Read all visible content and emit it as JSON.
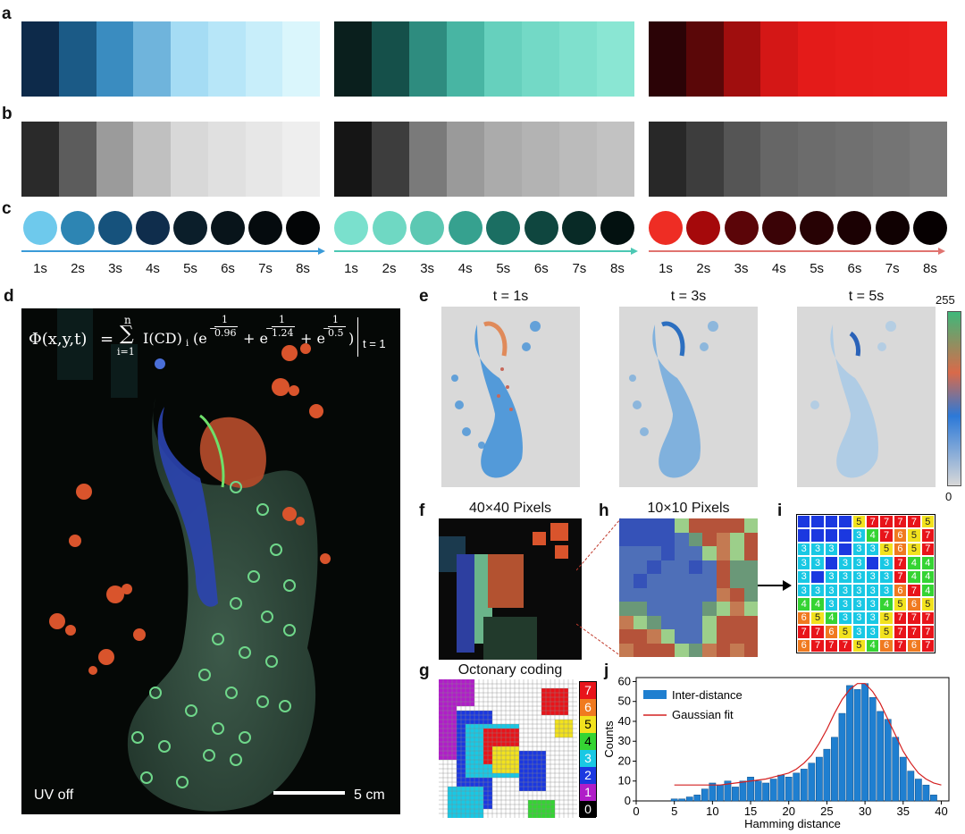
{
  "panels": {
    "a": "a",
    "b": "b",
    "c": "c",
    "d": "d",
    "e": "e",
    "f": "f",
    "g": "g",
    "h": "h",
    "i": "i",
    "j": "j"
  },
  "colors": {
    "blue_strip": [
      "#0d2a4a",
      "#1b5a86",
      "#3a8cc0",
      "#6fb4dc",
      "#a5dcf4",
      "#b7e6f8",
      "#c8eefa",
      "#daf6fc"
    ],
    "teal_strip": [
      "#0a1f1d",
      "#15504a",
      "#2e8c7f",
      "#48b5a3",
      "#66d0bd",
      "#73d9c6",
      "#7fe0cd",
      "#8ae6d3"
    ],
    "red_strip": [
      "#2b0306",
      "#5a0708",
      "#a00e0e",
      "#d41716",
      "#e41b19",
      "#e71d1b",
      "#e81e1c",
      "#ea201e"
    ],
    "gray1_strip": [
      "#2a2a2a",
      "#5c5c5c",
      "#9b9b9b",
      "#c0c0c0",
      "#d8d8d8",
      "#e0e0e0",
      "#e7e7e7",
      "#eeeeee"
    ],
    "gray2_strip": [
      "#151515",
      "#3d3d3d",
      "#7a7a7a",
      "#9a9a9a",
      "#ababab",
      "#b3b3b3",
      "#bbbbbb",
      "#c2c2c2"
    ],
    "gray3_strip": [
      "#282828",
      "#3d3d3d",
      "#555555",
      "#666666",
      "#6c6c6c",
      "#707070",
      "#747474",
      "#7a7a7a"
    ],
    "blue_dots": [
      "#6ec9ec",
      "#2d85b3",
      "#16527c",
      "#0f2d4c",
      "#0b1e2a",
      "#08141a",
      "#050b0e",
      "#030506"
    ],
    "teal_dots": [
      "#7ae0cd",
      "#6fd8c3",
      "#5cc8b3",
      "#36a18f",
      "#1b6e62",
      "#0f463f",
      "#082a26",
      "#031110"
    ],
    "red_dots": [
      "#ee2d24",
      "#a5090b",
      "#5b0508",
      "#3a0306",
      "#270204",
      "#1b0103",
      "#100102",
      "#060001"
    ],
    "axis_blue": "#3a9bd8",
    "axis_teal": "#4cc8b4",
    "axis_red": "#e07470",
    "hist_bar": "#1f7fd0",
    "fit_line": "#d42020"
  },
  "time_labels": [
    "1s",
    "2s",
    "3s",
    "4s",
    "5s",
    "6s",
    "7s",
    "8s"
  ],
  "panel_d": {
    "equation_lhs": "Φ(x,y,t)",
    "sum_upper": "n",
    "sum_lower": "i=1",
    "intensity": "I(CD)",
    "intensity_sub": "i",
    "exp1": "0.96",
    "exp2": "1.24",
    "exp3": "0.5",
    "t_eval": "t = 1",
    "uv_label": "UV off",
    "scale_label": "5 cm"
  },
  "panel_e": {
    "titles": [
      "t = 1s",
      "t = 3s",
      "t = 5s"
    ],
    "colorbar_max": "255",
    "colorbar_min": "0"
  },
  "panel_f": {
    "title": "40×40 Pixels"
  },
  "panel_h": {
    "title": "10×10 Pixels"
  },
  "panel_g": {
    "title": "Octonary coding",
    "scale_values": [
      "7",
      "6",
      "5",
      "4",
      "3",
      "2",
      "1",
      "0"
    ],
    "scale_colors": [
      "#e8141a",
      "#f07a20",
      "#f2e21e",
      "#35d433",
      "#19c8e4",
      "#1b38e0",
      "#b01ec8",
      "#000000"
    ]
  },
  "panel_i": {
    "grid": [
      [
        "2",
        "2",
        "2",
        "2",
        "5",
        "7",
        "7",
        "7",
        "7",
        "5"
      ],
      [
        "2",
        "2",
        "2",
        "2",
        "3",
        "4",
        "7",
        "6",
        "5",
        "7"
      ],
      [
        "3",
        "3",
        "3",
        "2",
        "3",
        "3",
        "5",
        "6",
        "5",
        "7"
      ],
      [
        "3",
        "3",
        "2",
        "3",
        "3",
        "2",
        "3",
        "7",
        "4",
        "4"
      ],
      [
        "3",
        "2",
        "3",
        "3",
        "3",
        "3",
        "3",
        "7",
        "4",
        "4"
      ],
      [
        "3",
        "3",
        "3",
        "3",
        "3",
        "3",
        "3",
        "6",
        "7",
        "4"
      ],
      [
        "4",
        "4",
        "3",
        "3",
        "3",
        "3",
        "4",
        "5",
        "6",
        "5"
      ],
      [
        "6",
        "5",
        "4",
        "3",
        "3",
        "3",
        "5",
        "7",
        "7",
        "7"
      ],
      [
        "7",
        "7",
        "6",
        "5",
        "3",
        "3",
        "5",
        "7",
        "7",
        "7"
      ],
      [
        "6",
        "7",
        "7",
        "7",
        "5",
        "4",
        "6",
        "7",
        "6",
        "7"
      ]
    ],
    "show_numbers_from": 3
  },
  "chart_data": {
    "type": "bar",
    "xlabel": "Hamming distance",
    "ylabel": "Counts",
    "xlim": [
      0,
      41
    ],
    "ylim": [
      0,
      62
    ],
    "xticks": [
      "0",
      "5",
      "10",
      "15",
      "20",
      "25",
      "30",
      "35",
      "40"
    ],
    "yticks": [
      "0",
      "10",
      "20",
      "30",
      "40",
      "50",
      "60"
    ],
    "legend": [
      "Inter-distance",
      "Gaussian fit"
    ],
    "series": [
      {
        "name": "Inter-distance",
        "x": [
          5,
          6,
          7,
          8,
          9,
          10,
          11,
          12,
          13,
          14,
          15,
          16,
          17,
          18,
          19,
          20,
          21,
          22,
          23,
          24,
          25,
          26,
          27,
          28,
          29,
          30,
          31,
          32,
          33,
          34,
          35,
          36,
          37,
          38,
          39
        ],
        "values": [
          1,
          1,
          2,
          3,
          6,
          9,
          8,
          10,
          7,
          10,
          12,
          10,
          9,
          11,
          13,
          12,
          14,
          16,
          19,
          22,
          26,
          32,
          44,
          58,
          56,
          59,
          52,
          45,
          41,
          32,
          22,
          15,
          11,
          8,
          3
        ]
      }
    ],
    "fit": {
      "name": "Gaussian fit",
      "x": [
        5,
        7,
        9,
        11,
        13,
        15,
        17,
        19,
        20,
        21,
        22,
        23,
        24,
        25,
        26,
        27,
        28,
        29,
        30,
        31,
        32,
        33,
        34,
        35,
        36,
        37,
        38,
        39,
        40
      ],
      "values": [
        8,
        8,
        8,
        8,
        9,
        10,
        11,
        13,
        14,
        16,
        19,
        23,
        29,
        36,
        44,
        51,
        56,
        59,
        59,
        55,
        49,
        41,
        33,
        25,
        19,
        14,
        11,
        9,
        8
      ]
    }
  }
}
